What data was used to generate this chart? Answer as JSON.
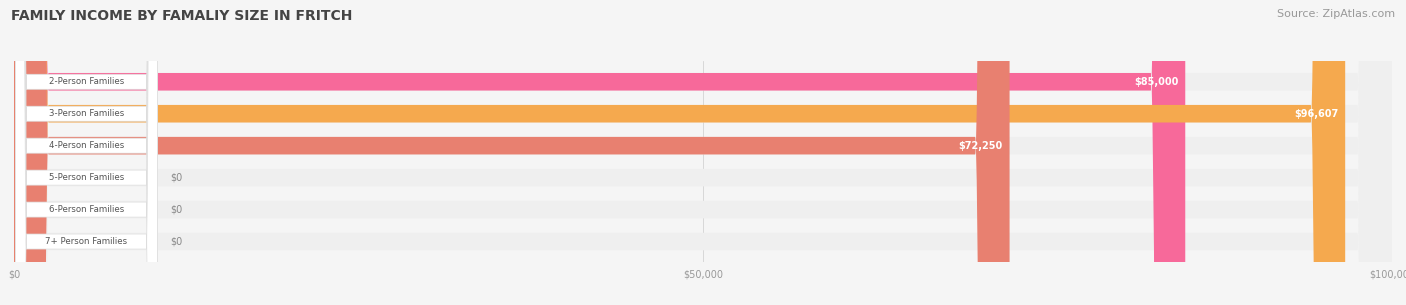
{
  "title": "FAMILY INCOME BY FAMALIY SIZE IN FRITCH",
  "source": "Source: ZipAtlas.com",
  "categories": [
    "2-Person Families",
    "3-Person Families",
    "4-Person Families",
    "5-Person Families",
    "6-Person Families",
    "7+ Person Families"
  ],
  "values": [
    85000,
    96607,
    72250,
    0,
    0,
    0
  ],
  "bar_colors": [
    "#F7699A",
    "#F5A94E",
    "#E88070",
    "#AFC8E8",
    "#C8A8D8",
    "#8DD0D8"
  ],
  "bar_label_colors": [
    "#FFFFFF",
    "#FFFFFF",
    "#FFFFFF",
    "#888888",
    "#888888",
    "#888888"
  ],
  "label_values": [
    "$85,000",
    "$96,607",
    "$72,250",
    "$0",
    "$0",
    "$0"
  ],
  "xlim": [
    0,
    100000
  ],
  "xtick_labels": [
    "$0",
    "$50,000",
    "$100,000"
  ],
  "xtick_values": [
    0,
    50000,
    100000
  ],
  "background_color": "#F5F5F5",
  "bar_background_color": "#EFEFEF",
  "label_box_color": "#FFFFFF",
  "title_fontsize": 10,
  "source_fontsize": 8,
  "bar_height": 0.55
}
